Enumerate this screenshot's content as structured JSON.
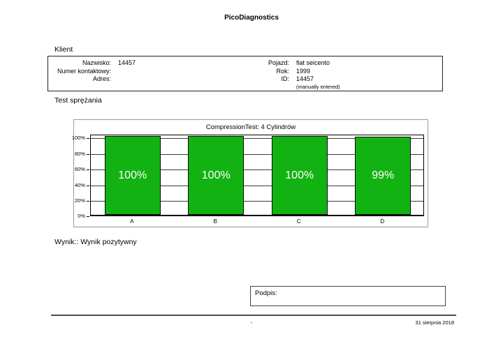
{
  "header": {
    "title": "PicoDiagnostics"
  },
  "client": {
    "section_title": "Klient",
    "left": [
      {
        "label": "Nazwisko:",
        "value": "14457"
      },
      {
        "label": "Numer kontaktowy:",
        "value": ""
      },
      {
        "label": "Adres:",
        "value": ""
      }
    ],
    "right": [
      {
        "label": "Pojazd:",
        "value": "fiat seicento"
      },
      {
        "label": "Rok:",
        "value": "1999"
      },
      {
        "label": "ID:",
        "value": "14457"
      }
    ],
    "id_note": "(manually entered)"
  },
  "test_section_title": "Test sprężania",
  "chart_data": {
    "type": "bar",
    "title": "CompressionTest: 4 Cylindrów",
    "categories": [
      "A",
      "B",
      "C",
      "D"
    ],
    "values": [
      100,
      100,
      100,
      99
    ],
    "value_labels": [
      "100%",
      "100%",
      "100%",
      "99%"
    ],
    "xlabel": "",
    "ylabel": "",
    "ylim": [
      0,
      100
    ],
    "yticks": [
      0,
      20,
      40,
      60,
      80,
      100
    ],
    "ytick_labels": [
      "0%",
      "20%",
      "40%",
      "60%",
      "80%",
      "100%"
    ],
    "grid": true,
    "legend": false,
    "bar_color": "#12b212",
    "bar_label_color": "#ffffff"
  },
  "result": {
    "text": "Wynik:: Wynik pozytywny"
  },
  "signature": {
    "label": "Podpis:"
  },
  "footer": {
    "center": "-",
    "date": "31 sierpnia 2018"
  }
}
